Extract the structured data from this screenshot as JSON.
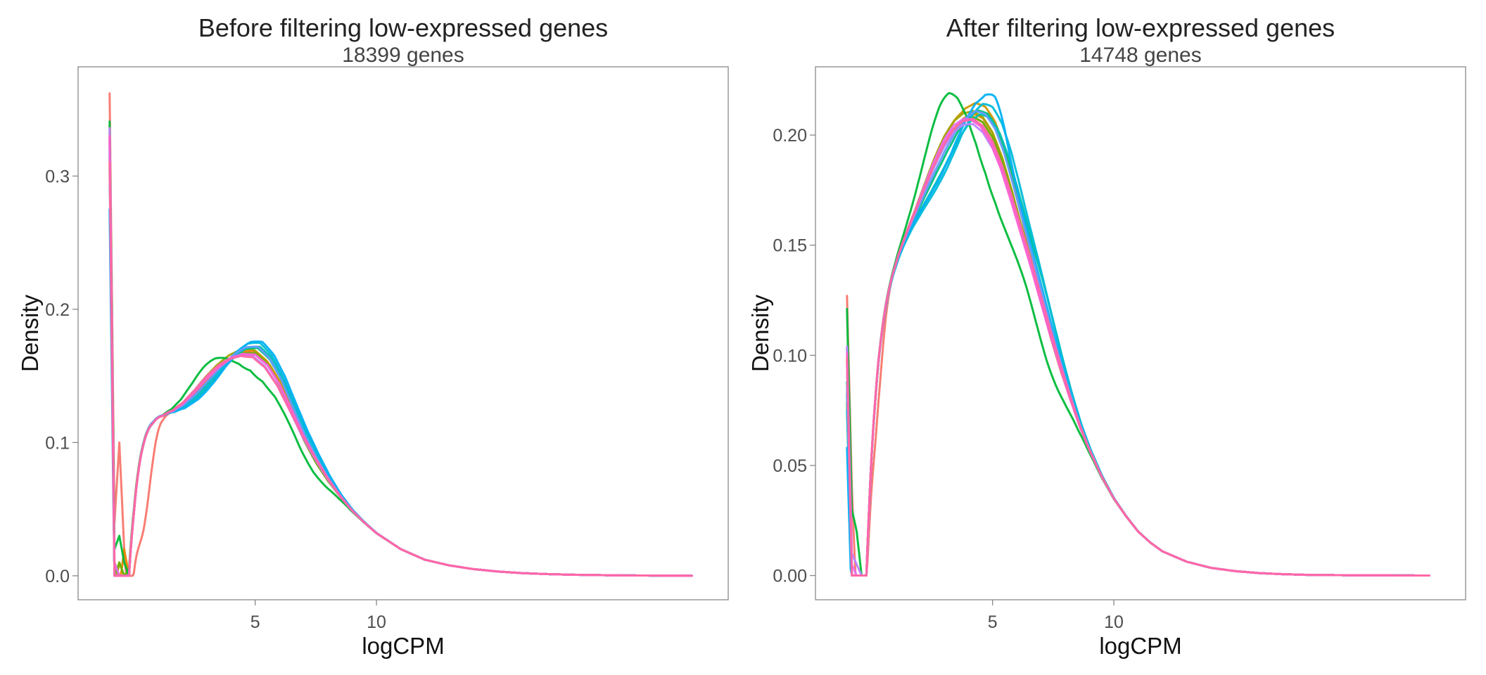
{
  "chart_data": [
    {
      "type": "line",
      "title": "Before filtering low-expressed genes",
      "subtitle": "18399 genes",
      "xlabel": "logCPM",
      "ylabel": "Density",
      "xlim": [
        -2.3,
        24.5
      ],
      "ylim": [
        -0.018,
        0.382
      ],
      "xticks": [
        5,
        10
      ],
      "yticks": [
        0.0,
        0.1,
        0.2,
        0.3
      ],
      "ytick_labels": [
        "0.0",
        "0.1",
        "0.2",
        "0.3"
      ],
      "grid": false,
      "legend": "none",
      "baseline": {
        "x": [
          -1.0,
          -0.8,
          -0.6,
          -0.4,
          -0.2,
          0.0,
          0.4,
          0.8,
          1.2,
          1.6,
          2.0,
          2.5,
          3.0,
          3.5,
          4.0,
          4.5,
          5.0,
          5.5,
          6.0,
          6.5,
          7.0,
          7.5,
          8.0,
          8.5,
          9.0,
          9.5,
          10.0,
          10.5,
          11.0,
          11.5,
          12.0,
          13.0,
          14.0,
          15.0,
          16.0,
          17.0,
          18.0,
          20.0,
          22.0,
          23.0
        ],
        "y": [
          0.32,
          0.3,
          0.26,
          0.205,
          0.172,
          0.158,
          0.145,
          0.134,
          0.128,
          0.127,
          0.13,
          0.138,
          0.148,
          0.157,
          0.164,
          0.168,
          0.168,
          0.16,
          0.145,
          0.125,
          0.105,
          0.088,
          0.073,
          0.06,
          0.049,
          0.04,
          0.032,
          0.026,
          0.02,
          0.016,
          0.012,
          0.0078,
          0.005,
          0.0032,
          0.002,
          0.0013,
          0.0008,
          0.0003,
          0.0001,
          0.0
        ]
      },
      "series": [
        {
          "color": "#F8766D",
          "ry": [
            0.362,
            0.04,
            0.1,
            0.02,
            -0.035
          ],
          "a": 0,
          "b": 0,
          "d": 0,
          "e": -0.003,
          "dip": [
            -0.055,
            0.4,
            0.3
          ]
        },
        {
          "color": "#E58700",
          "ry": [
            0.332,
            0.0,
            -0.01,
            0.02,
            0.0
          ],
          "a": -0.002,
          "b": 0.001,
          "d": 0,
          "e": 0
        },
        {
          "color": "#C99800",
          "ry": [
            0.338,
            0.01,
            0.0,
            0.0,
            0.0
          ],
          "a": 0.003,
          "b": -0.002,
          "d": 0.1,
          "e": 0
        },
        {
          "color": "#A3A500",
          "ry": [
            0.327,
            -0.01,
            0.01,
            0.0,
            0.0
          ],
          "a": 0.001,
          "b": 0.002,
          "d": -0.1,
          "e": 0.002
        },
        {
          "color": "#6BB100",
          "ry": [
            0.315,
            0.0,
            0.01,
            0.0,
            0.005
          ],
          "a": 0,
          "b": -0.001,
          "d": 0,
          "e": -0.003
        },
        {
          "color": "#00BA38",
          "ry": [
            0.341,
            0.02,
            0.03,
            0.01,
            0.0
          ],
          "a": 0.01,
          "b": -0.015,
          "d": -0.2,
          "e": -0.01
        },
        {
          "color": "#00BF7D",
          "ry": [
            0.305,
            0.0,
            0.0,
            0.0,
            0.0
          ],
          "a": -0.003,
          "b": 0.003,
          "d": 0.1,
          "e": 0.005
        },
        {
          "color": "#00C0AF",
          "ry": [
            0.33,
            0.0,
            -0.005,
            0.0,
            0.0
          ],
          "a": -0.005,
          "b": 0.004,
          "d": 0.2,
          "e": 0.004
        },
        {
          "color": "#00BCD8",
          "ry": [
            0.322,
            0.0,
            0.0,
            0.0,
            0.0
          ],
          "a": -0.004,
          "b": 0.007,
          "d": 0.2,
          "e": 0.001
        },
        {
          "color": "#00B0F6",
          "ry": [
            0.275,
            -0.01,
            -0.01,
            0.0,
            0.0
          ],
          "a": -0.006,
          "b": 0.008,
          "d": 0.3,
          "e": 0.003
        },
        {
          "color": "#619CFF",
          "ry": [
            0.318,
            0.0,
            0.0,
            0.0,
            0.0
          ],
          "a": -0.002,
          "b": 0.004,
          "d": 0.1,
          "e": 0
        },
        {
          "color": "#B983FF",
          "ry": [
            0.336,
            0.0,
            0.0,
            0.0,
            0.0
          ],
          "a": 0,
          "b": -0.003,
          "d": -0.1,
          "e": 0
        },
        {
          "color": "#E76BF3",
          "ry": [
            0.325,
            0.01,
            0.0,
            0.0,
            0.0
          ],
          "a": 0.002,
          "b": -0.002,
          "d": 0,
          "e": 0
        },
        {
          "color": "#FD61D1",
          "ry": [
            0.33,
            0.0,
            0.0,
            0.0,
            0.0
          ],
          "a": 0,
          "b": -0.002,
          "d": 0,
          "e": 0
        },
        {
          "color": "#FF67A4",
          "ry": [
            0.31,
            0.0,
            0.0,
            0.0,
            0.0
          ],
          "a": 0.001,
          "b": -0.004,
          "d": -0.1,
          "e": 0.001
        }
      ]
    },
    {
      "type": "line",
      "title": "After filtering low-expressed genes",
      "subtitle": "14748 genes",
      "xlabel": "logCPM",
      "ylabel": "Density",
      "xlim": [
        -2.3,
        24.5
      ],
      "ylim": [
        -0.011,
        0.231
      ],
      "xticks": [
        5,
        10
      ],
      "yticks": [
        0.0,
        0.05,
        0.1,
        0.15,
        0.2
      ],
      "ytick_labels": [
        "0.00",
        "0.05",
        "0.10",
        "0.15",
        "0.20"
      ],
      "grid": false,
      "legend": "none",
      "baseline": {
        "x": [
          -1.0,
          -0.8,
          -0.6,
          -0.4,
          -0.2,
          0.0,
          0.3,
          0.6,
          1.0,
          1.4,
          1.8,
          2.2,
          2.6,
          3.0,
          3.4,
          3.8,
          4.2,
          4.6,
          5.0,
          5.4,
          5.8,
          6.2,
          6.6,
          7.0,
          7.4,
          7.8,
          8.2,
          8.6,
          9.0,
          9.5,
          10.0,
          10.5,
          11.0,
          11.5,
          12.0,
          13.0,
          14.0,
          15.0,
          16.0,
          17.0,
          18.0,
          20.0,
          22.0,
          23.0
        ],
        "y": [
          0.09,
          0.088,
          0.092,
          0.1,
          0.112,
          0.124,
          0.135,
          0.142,
          0.149,
          0.157,
          0.166,
          0.176,
          0.186,
          0.195,
          0.202,
          0.206,
          0.207,
          0.204,
          0.197,
          0.186,
          0.172,
          0.157,
          0.142,
          0.126,
          0.11,
          0.095,
          0.081,
          0.068,
          0.057,
          0.045,
          0.035,
          0.027,
          0.02,
          0.015,
          0.011,
          0.0063,
          0.0035,
          0.002,
          0.0011,
          0.0006,
          0.0003,
          0.0001,
          5e-05,
          0.0
        ]
      },
      "series": [
        {
          "color": "#F8766D",
          "ry": [
            0.127,
            0.04,
            -0.015,
            -0.004,
            0.0
          ],
          "a": 0,
          "b": 0.002,
          "d": 0,
          "e": 0,
          "dip": [
            -0.02,
            0.2,
            0.25
          ]
        },
        {
          "color": "#E58700",
          "ry": [
            0.098,
            0.0,
            0.0,
            0.0,
            0.0
          ],
          "a": 0,
          "b": 0.004,
          "d": 0,
          "e": -0.002
        },
        {
          "color": "#C99800",
          "ry": [
            0.103,
            0.0,
            -0.005,
            0.0,
            0.0
          ],
          "a": 0.004,
          "b": 0.009,
          "d": 0.1,
          "e": -0.004
        },
        {
          "color": "#A3A500",
          "ry": [
            0.083,
            -0.005,
            0.0,
            0.0,
            0.0
          ],
          "a": 0.004,
          "b": 0.004,
          "d": 0,
          "e": -0.002
        },
        {
          "color": "#6BB100",
          "ry": [
            0.078,
            0.0,
            0.0,
            0.0,
            0.0
          ],
          "a": 0,
          "b": 0.002,
          "d": 0,
          "e": 0
        },
        {
          "color": "#00BA38",
          "ry": [
            0.121,
            0.03,
            0.02,
            0.0,
            0.0
          ],
          "a": 0.02,
          "b": -0.017,
          "d": -0.3,
          "e": -0.012
        },
        {
          "color": "#00BF7D",
          "ry": [
            0.088,
            0.0,
            0.0,
            0.0,
            0.0
          ],
          "a": -0.003,
          "b": 0.006,
          "d": 0.2,
          "e": 0.006
        },
        {
          "color": "#00C0AF",
          "ry": [
            0.075,
            0.0,
            0.0,
            0.0,
            0.0
          ],
          "a": -0.006,
          "b": 0.004,
          "d": 0.3,
          "e": 0.004
        },
        {
          "color": "#00BCD8",
          "ry": [
            0.082,
            0.0,
            0.0,
            0.0,
            0.0
          ],
          "a": -0.008,
          "b": 0.009,
          "d": 0.4,
          "e": 0.002
        },
        {
          "color": "#00B0F6",
          "ry": [
            0.058,
            -0.015,
            -0.01,
            0.0,
            0.0
          ],
          "a": -0.01,
          "b": 0.013,
          "d": 0.1,
          "e": 0.003,
          "bump": [
            0.008,
            5.2,
            0.35
          ]
        },
        {
          "color": "#619CFF",
          "ry": [
            0.086,
            0.0,
            0.0,
            0.0,
            0.0
          ],
          "a": -0.002,
          "b": 0.006,
          "d": 0.1,
          "e": 0.001
        },
        {
          "color": "#B983FF",
          "ry": [
            0.104,
            0.01,
            0.005,
            0.0,
            0.0
          ],
          "a": 0,
          "b": -0.003,
          "d": 0,
          "e": 0
        },
        {
          "color": "#E76BF3",
          "ry": [
            0.096,
            0.005,
            0.0,
            0.0,
            0.0
          ],
          "a": 0.003,
          "b": -0.001,
          "d": 0,
          "e": 0
        },
        {
          "color": "#FD61D1",
          "ry": [
            0.101,
            0.0,
            0.0,
            0.0,
            0.0
          ],
          "a": 0,
          "b": 0.0,
          "d": -0.1,
          "e": 0
        },
        {
          "color": "#FF67A4",
          "ry": [
            0.099,
            0.0,
            0.0,
            0.0,
            0.0
          ],
          "a": 0.001,
          "b": 0.0,
          "d": 0,
          "e": 0.001
        }
      ]
    }
  ]
}
